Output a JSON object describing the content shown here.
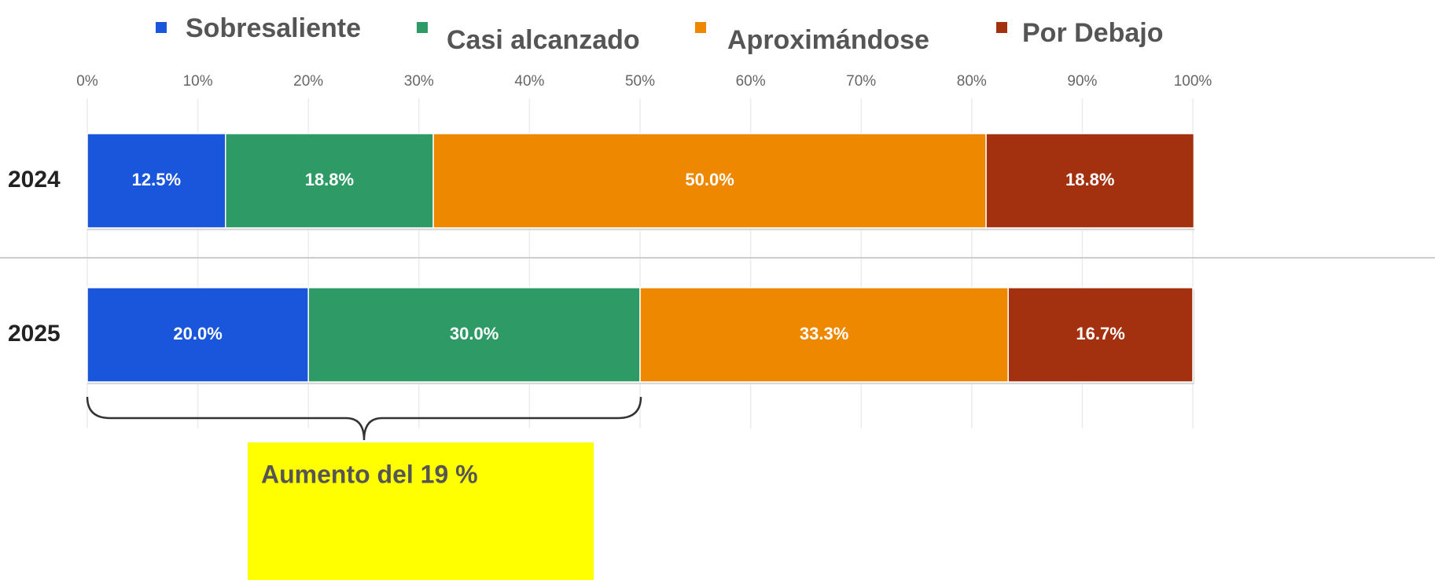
{
  "chart_data": {
    "type": "stacked_barh",
    "categories": [
      "2024",
      "2025"
    ],
    "series": [
      {
        "name": "Sobresaliente",
        "color": "#1a56db",
        "values": [
          12.5,
          20.0
        ],
        "value_labels": [
          "12.5%",
          "20.0%"
        ]
      },
      {
        "name": "Casi alcanzado",
        "color": "#2e9a66",
        "values": [
          18.8,
          30.0
        ],
        "value_labels": [
          "18.8%",
          "30.0%"
        ]
      },
      {
        "name": "Aproximándose",
        "color": "#ee8800",
        "values": [
          50.0,
          33.3
        ],
        "value_labels": [
          "50.0%",
          "33.3%"
        ]
      },
      {
        "name": "Por Debajo",
        "color": "#a3300f",
        "values": [
          18.8,
          16.7
        ],
        "value_labels": [
          "18.8%",
          "16.7%"
        ]
      }
    ],
    "xlim": [
      0,
      100
    ],
    "xticks": [
      {
        "value": 0,
        "label": "0%"
      },
      {
        "value": 10,
        "label": "10%"
      },
      {
        "value": 20,
        "label": "20%"
      },
      {
        "value": 30,
        "label": "30%"
      },
      {
        "value": 40,
        "label": "40%"
      },
      {
        "value": 50,
        "label": "50%"
      },
      {
        "value": 60,
        "label": "60%"
      },
      {
        "value": 70,
        "label": "70%"
      },
      {
        "value": 80,
        "label": "80%"
      },
      {
        "value": 90,
        "label": "90%"
      },
      {
        "value": 100,
        "label": "100%"
      }
    ],
    "grid": true,
    "annotation": "Aumento del 19 %"
  }
}
